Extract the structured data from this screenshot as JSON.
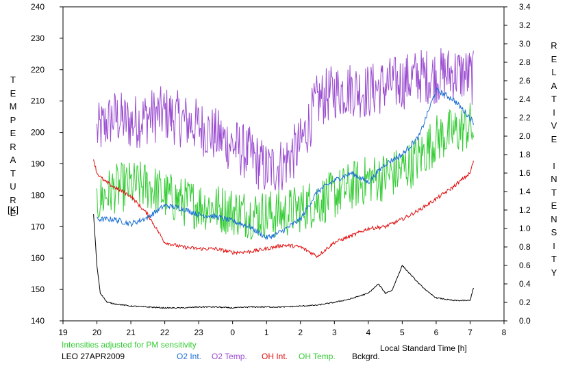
{
  "left_axis": {
    "label_letters": [
      "T",
      "E",
      "M",
      "P",
      "E",
      "R",
      "A",
      "T",
      "U",
      "R",
      "E"
    ],
    "unit": "[K]"
  },
  "right_axis": {
    "label_letters": [
      "R",
      "E",
      "L",
      "A",
      "T",
      "I",
      "V",
      "E",
      "",
      "I",
      "N",
      "T",
      "E",
      "N",
      "S",
      "I",
      "T",
      "Y"
    ]
  },
  "note": "Intensities adjusted for PM sensitivity",
  "legend": {
    "site": "LEO 27APR2009",
    "items": [
      {
        "label": "O2 Int.",
        "color": "#1c6fd6"
      },
      {
        "label": "O2 Temp.",
        "color": "#9a4cd0"
      },
      {
        "label": "OH Int.",
        "color": "#e01010"
      },
      {
        "label": "OH Temp.",
        "color": "#33cc33"
      },
      {
        "label": "Bckgrd.",
        "color": "#000000"
      }
    ]
  },
  "chart_data": {
    "type": "line",
    "xlabel": "Local Standard Time [h]",
    "x_ticks": [
      {
        "value": 19,
        "label": "19"
      },
      {
        "value": 20,
        "label": "20"
      },
      {
        "value": 21,
        "label": "21"
      },
      {
        "value": 22,
        "label": "22"
      },
      {
        "value": 23,
        "label": "23"
      },
      {
        "value": 24,
        "label": "0"
      },
      {
        "value": 25,
        "label": "1"
      },
      {
        "value": 26,
        "label": "2"
      },
      {
        "value": 27,
        "label": "3"
      },
      {
        "value": 28,
        "label": "4"
      },
      {
        "value": 29,
        "label": "5"
      },
      {
        "value": 30,
        "label": "6"
      },
      {
        "value": 31,
        "label": "7"
      },
      {
        "value": 32,
        "label": "8"
      }
    ],
    "xlim": [
      19,
      32
    ],
    "y_left": {
      "lim": [
        140,
        240
      ],
      "ticks": [
        "140",
        "150",
        "160",
        "170",
        "180",
        "190",
        "200",
        "210",
        "220",
        "230",
        "240"
      ]
    },
    "y_right": {
      "lim": [
        0,
        3.4
      ],
      "ticks": [
        "0.0",
        "0.2",
        "0.4",
        "0.6",
        "0.8",
        "1.0",
        "1.2",
        "1.4",
        "1.6",
        "1.8",
        "2.0",
        "2.2",
        "2.4",
        "2.6",
        "2.8",
        "3.0",
        "3.2",
        "3.4"
      ]
    },
    "series": [
      {
        "name": "O2 Temp.",
        "axis": "left",
        "color": "#9a4cd0",
        "noise": 9,
        "x": [
          20.0,
          20.5,
          21.0,
          21.5,
          22.0,
          22.5,
          23.0,
          23.5,
          24.0,
          24.5,
          25.0,
          25.5,
          26.0,
          26.5,
          27.0,
          27.5,
          28.0,
          28.5,
          29.0,
          29.5,
          30.0,
          30.5,
          31.0,
          31.1
        ],
        "y": [
          200,
          205,
          203,
          205,
          206,
          204,
          202,
          199,
          196,
          193,
          188,
          190,
          196,
          210,
          213,
          214,
          213,
          215,
          216,
          218,
          218,
          219,
          218,
          217
        ]
      },
      {
        "name": "OH Temp.",
        "axis": "left",
        "color": "#33cc33",
        "noise": 8,
        "x": [
          20.0,
          20.5,
          21.0,
          21.5,
          22.0,
          22.5,
          23.0,
          23.5,
          24.0,
          24.5,
          25.0,
          25.5,
          26.0,
          26.5,
          27.0,
          27.5,
          28.0,
          28.5,
          29.0,
          29.5,
          30.0,
          30.5,
          31.0,
          31.1
        ],
        "y": [
          178,
          182,
          183,
          183,
          180,
          178,
          177,
          176,
          175,
          174,
          174,
          174,
          176,
          178,
          180,
          183,
          185,
          186,
          188,
          192,
          198,
          200,
          202,
          200
        ]
      },
      {
        "name": "O2 Int.",
        "axis": "right",
        "color": "#1c6fd6",
        "noise": 0.03,
        "x": [
          20.0,
          20.5,
          21.0,
          21.5,
          22.0,
          22.5,
          23.0,
          23.5,
          24.0,
          24.5,
          25.0,
          25.25,
          25.5,
          26.0,
          26.5,
          27.0,
          27.5,
          28.0,
          28.5,
          29.0,
          29.5,
          30.0,
          30.5,
          31.0,
          31.1
        ],
        "y": [
          1.1,
          1.1,
          1.05,
          1.12,
          1.25,
          1.22,
          1.15,
          1.13,
          1.08,
          1.02,
          0.9,
          0.93,
          0.98,
          1.1,
          1.4,
          1.52,
          1.6,
          1.5,
          1.7,
          1.8,
          2.0,
          2.5,
          2.4,
          2.2,
          2.15
        ]
      },
      {
        "name": "OH Int.",
        "axis": "right",
        "color": "#e01010",
        "noise": 0.02,
        "x": [
          19.9,
          20.0,
          20.2,
          20.5,
          21.0,
          21.5,
          22.0,
          22.5,
          23.0,
          23.5,
          24.0,
          24.5,
          25.0,
          25.5,
          26.0,
          26.5,
          27.0,
          27.5,
          28.0,
          28.5,
          29.0,
          29.5,
          30.0,
          30.5,
          31.0,
          31.1
        ],
        "y": [
          1.75,
          1.6,
          1.52,
          1.45,
          1.35,
          1.15,
          0.85,
          0.8,
          0.78,
          0.78,
          0.74,
          0.75,
          0.78,
          0.82,
          0.8,
          0.7,
          0.85,
          0.92,
          1.0,
          1.02,
          1.1,
          1.2,
          1.32,
          1.45,
          1.6,
          1.73
        ]
      },
      {
        "name": "Bckgrd.",
        "axis": "right",
        "color": "#000000",
        "noise": 0.006,
        "x": [
          19.9,
          20.0,
          20.1,
          20.3,
          20.6,
          21.0,
          21.5,
          22.0,
          22.5,
          23.0,
          23.5,
          24.0,
          24.5,
          25.0,
          25.5,
          26.0,
          26.5,
          27.0,
          27.5,
          28.0,
          28.3,
          28.5,
          28.7,
          29.0,
          29.2,
          29.5,
          29.8,
          30.0,
          30.5,
          31.0,
          31.1
        ],
        "y": [
          1.15,
          0.6,
          0.3,
          0.2,
          0.18,
          0.16,
          0.15,
          0.14,
          0.14,
          0.15,
          0.15,
          0.14,
          0.15,
          0.15,
          0.15,
          0.16,
          0.17,
          0.2,
          0.24,
          0.3,
          0.4,
          0.3,
          0.33,
          0.6,
          0.52,
          0.4,
          0.3,
          0.25,
          0.22,
          0.22,
          0.36
        ]
      }
    ]
  }
}
